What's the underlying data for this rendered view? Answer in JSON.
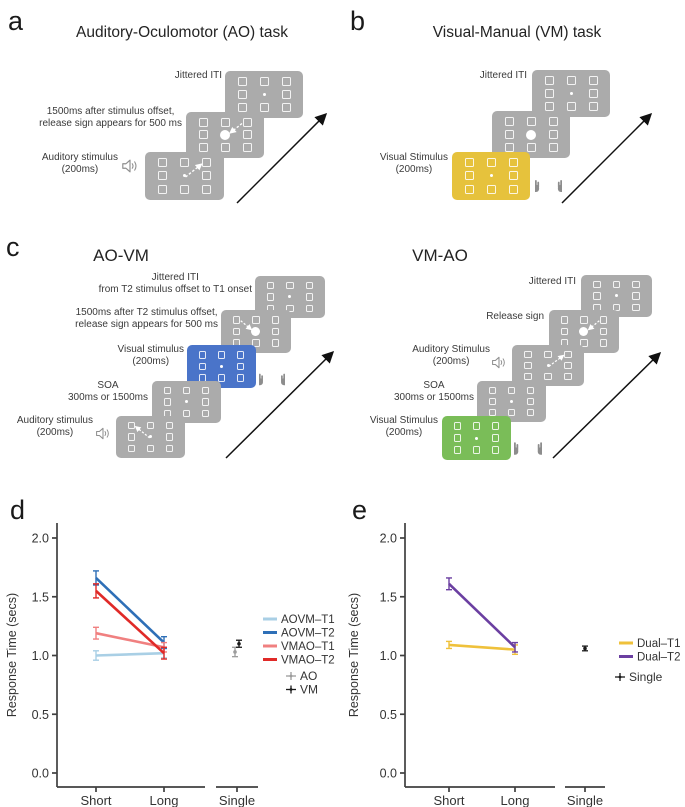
{
  "figure": {
    "colors": {
      "screen_gray": "#ABABAB",
      "screen_yellow": "#E6C23C",
      "screen_blue": "#4A74C9",
      "screen_green": "#7ABD58",
      "icon_gray": "#8D8D8D",
      "axis": "#404040",
      "text": "#333333"
    },
    "panels": {
      "a": {
        "letter": "a",
        "title": "Auditory-Oculomotor (AO) task",
        "labels": {
          "jittered": "Jittered ITI",
          "release_l1": "1500ms after stimulus offset,",
          "release_l2": "release sign appears for 500 ms",
          "stimulus_l1": "Auditory stimulus",
          "stimulus_l2": "(200ms)"
        }
      },
      "b": {
        "letter": "b",
        "title": "Visual-Manual (VM) task",
        "labels": {
          "jittered": "Jittered ITI",
          "stimulus_l1": "Visual Stimulus",
          "stimulus_l2": "(200ms)"
        }
      },
      "c": {
        "letter": "c",
        "aovm": {
          "title": "AO-VM",
          "labels": {
            "jittered_l1": "Jittered ITI",
            "jittered_l2": "from T2 stimulus offset to T1 onset",
            "release_l1": "1500ms after T2 stimulus offset,",
            "release_l2": "release sign appears for 500 ms",
            "visual_l1": "Visual stimulus",
            "visual_l2": "(200ms)",
            "soa_l1": "SOA",
            "soa_l2": "300ms or 1500ms",
            "auditory_l1": "Auditory stimulus",
            "auditory_l2": "(200ms)"
          }
        },
        "vmao": {
          "title": "VM-AO",
          "labels": {
            "jittered": "Jittered ITI",
            "release": "Release sign",
            "auditory_l1": "Auditory Stimulus",
            "auditory_l2": "(200ms)",
            "soa_l1": "SOA",
            "soa_l2": "300ms or 1500ms",
            "visual_l1": "Visual Stimulus",
            "visual_l2": "(200ms)"
          }
        }
      },
      "d": {
        "letter": "d"
      },
      "e": {
        "letter": "e"
      }
    }
  },
  "chart_data": [
    {
      "panel": "d",
      "type": "line",
      "title": "",
      "xlabel": "",
      "ylabel": "Response Time (secs)",
      "ylim": [
        0,
        2.05
      ],
      "yticks": [
        0,
        0.5,
        1,
        1.5,
        2
      ],
      "categories": [
        "Short",
        "Long"
      ],
      "single_category": "Single",
      "legend_position": "right",
      "series": [
        {
          "name": "AOVM–T1",
          "color": "#A9CFE5",
          "values": [
            1.0,
            1.02
          ],
          "errors": [
            0.04,
            0.04
          ]
        },
        {
          "name": "AOVM–T2",
          "color": "#2E6FB7",
          "values": [
            1.66,
            1.11
          ],
          "errors": [
            0.06,
            0.05
          ]
        },
        {
          "name": "VMAO–T1",
          "color": "#F08080",
          "values": [
            1.19,
            1.07
          ],
          "errors": [
            0.05,
            0.04
          ]
        },
        {
          "name": "VMAO–T2",
          "color": "#E02A28",
          "values": [
            1.55,
            1.02
          ],
          "errors": [
            0.06,
            0.05
          ]
        }
      ],
      "single_points": [
        {
          "name": "AO",
          "color": "#9C9C9C",
          "value": 1.03,
          "error": 0.04
        },
        {
          "name": "VM",
          "color": "#1A1A1A",
          "value": 1.1,
          "error": 0.03
        }
      ]
    },
    {
      "panel": "e",
      "type": "line",
      "title": "",
      "xlabel": "",
      "ylabel": "Response Time (secs)",
      "ylim": [
        0,
        2.05
      ],
      "yticks": [
        0,
        0.5,
        1,
        1.5,
        2
      ],
      "categories": [
        "Short",
        "Long"
      ],
      "single_category": "Single",
      "legend_position": "right",
      "series": [
        {
          "name": "Dual–T1",
          "color": "#EFC13B",
          "values": [
            1.09,
            1.05
          ],
          "errors": [
            0.03,
            0.04
          ]
        },
        {
          "name": "Dual–T2",
          "color": "#6B3FA1",
          "values": [
            1.61,
            1.07
          ],
          "errors": [
            0.05,
            0.04
          ]
        }
      ],
      "single_points": [
        {
          "name": "Single",
          "color": "#1A1A1A",
          "value": 1.06,
          "error": 0.02
        }
      ]
    }
  ]
}
